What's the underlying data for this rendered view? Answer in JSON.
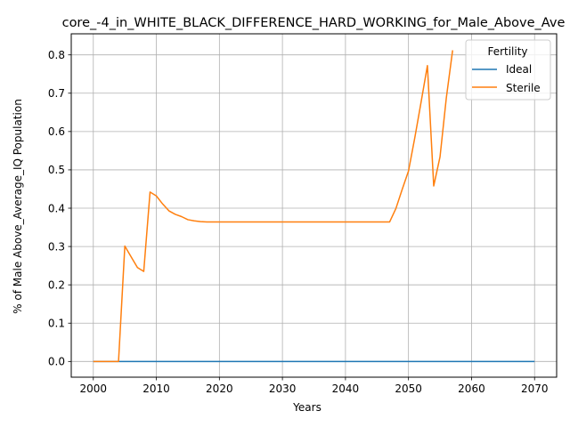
{
  "chart_data": {
    "type": "line",
    "title": "core_-4_in_WHITE_BLACK_DIFFERENCE_HARD_WORKING_for_Male_Above_Ave",
    "xlabel": "Years",
    "ylabel": "% of Male Above_Average_IQ Population",
    "xlim": [
      1996.5,
      2073.5
    ],
    "ylim": [
      -0.041,
      0.855
    ],
    "grid": true,
    "x_ticks": [
      2000,
      2010,
      2020,
      2030,
      2040,
      2050,
      2060,
      2070
    ],
    "y_ticks": [
      0.0,
      0.1,
      0.2,
      0.3,
      0.4,
      0.5,
      0.6,
      0.7,
      0.8
    ],
    "x_tick_labels": [
      "2000",
      "2010",
      "2020",
      "2030",
      "2040",
      "2050",
      "2060",
      "2070"
    ],
    "y_tick_labels": [
      "0.0",
      "0.1",
      "0.2",
      "0.3",
      "0.4",
      "0.5",
      "0.6",
      "0.7",
      "0.8"
    ],
    "legend": {
      "title": "Fertility",
      "placement": "top-right"
    },
    "series": [
      {
        "name": "Ideal",
        "color": "#1f77b4",
        "x": [
          2000,
          2010,
          2020,
          2030,
          2040,
          2050,
          2060,
          2070
        ],
        "y": [
          0,
          0,
          0,
          0,
          0,
          0,
          0,
          0
        ]
      },
      {
        "name": "Sterile",
        "color": "#ff7f0e",
        "x": [
          2000,
          2001,
          2002,
          2003,
          2004,
          2005,
          2006,
          2007,
          2008,
          2009,
          2010,
          2011,
          2012,
          2013,
          2014,
          2015,
          2016,
          2017,
          2018,
          2019,
          2020,
          2025,
          2030,
          2035,
          2040,
          2045,
          2047,
          2048,
          2049,
          2050,
          2051,
          2052,
          2053,
          2054,
          2055,
          2056,
          2057
        ],
        "y": [
          0,
          0,
          0,
          0,
          0,
          0.301,
          0.273,
          0.245,
          0.235,
          0.442,
          0.432,
          0.411,
          0.393,
          0.384,
          0.378,
          0.37,
          0.367,
          0.365,
          0.364,
          0.364,
          0.364,
          0.364,
          0.364,
          0.364,
          0.364,
          0.364,
          0.364,
          0.399,
          0.449,
          0.497,
          0.584,
          0.677,
          0.772,
          0.458,
          0.534,
          0.688,
          0.812
        ]
      }
    ]
  }
}
